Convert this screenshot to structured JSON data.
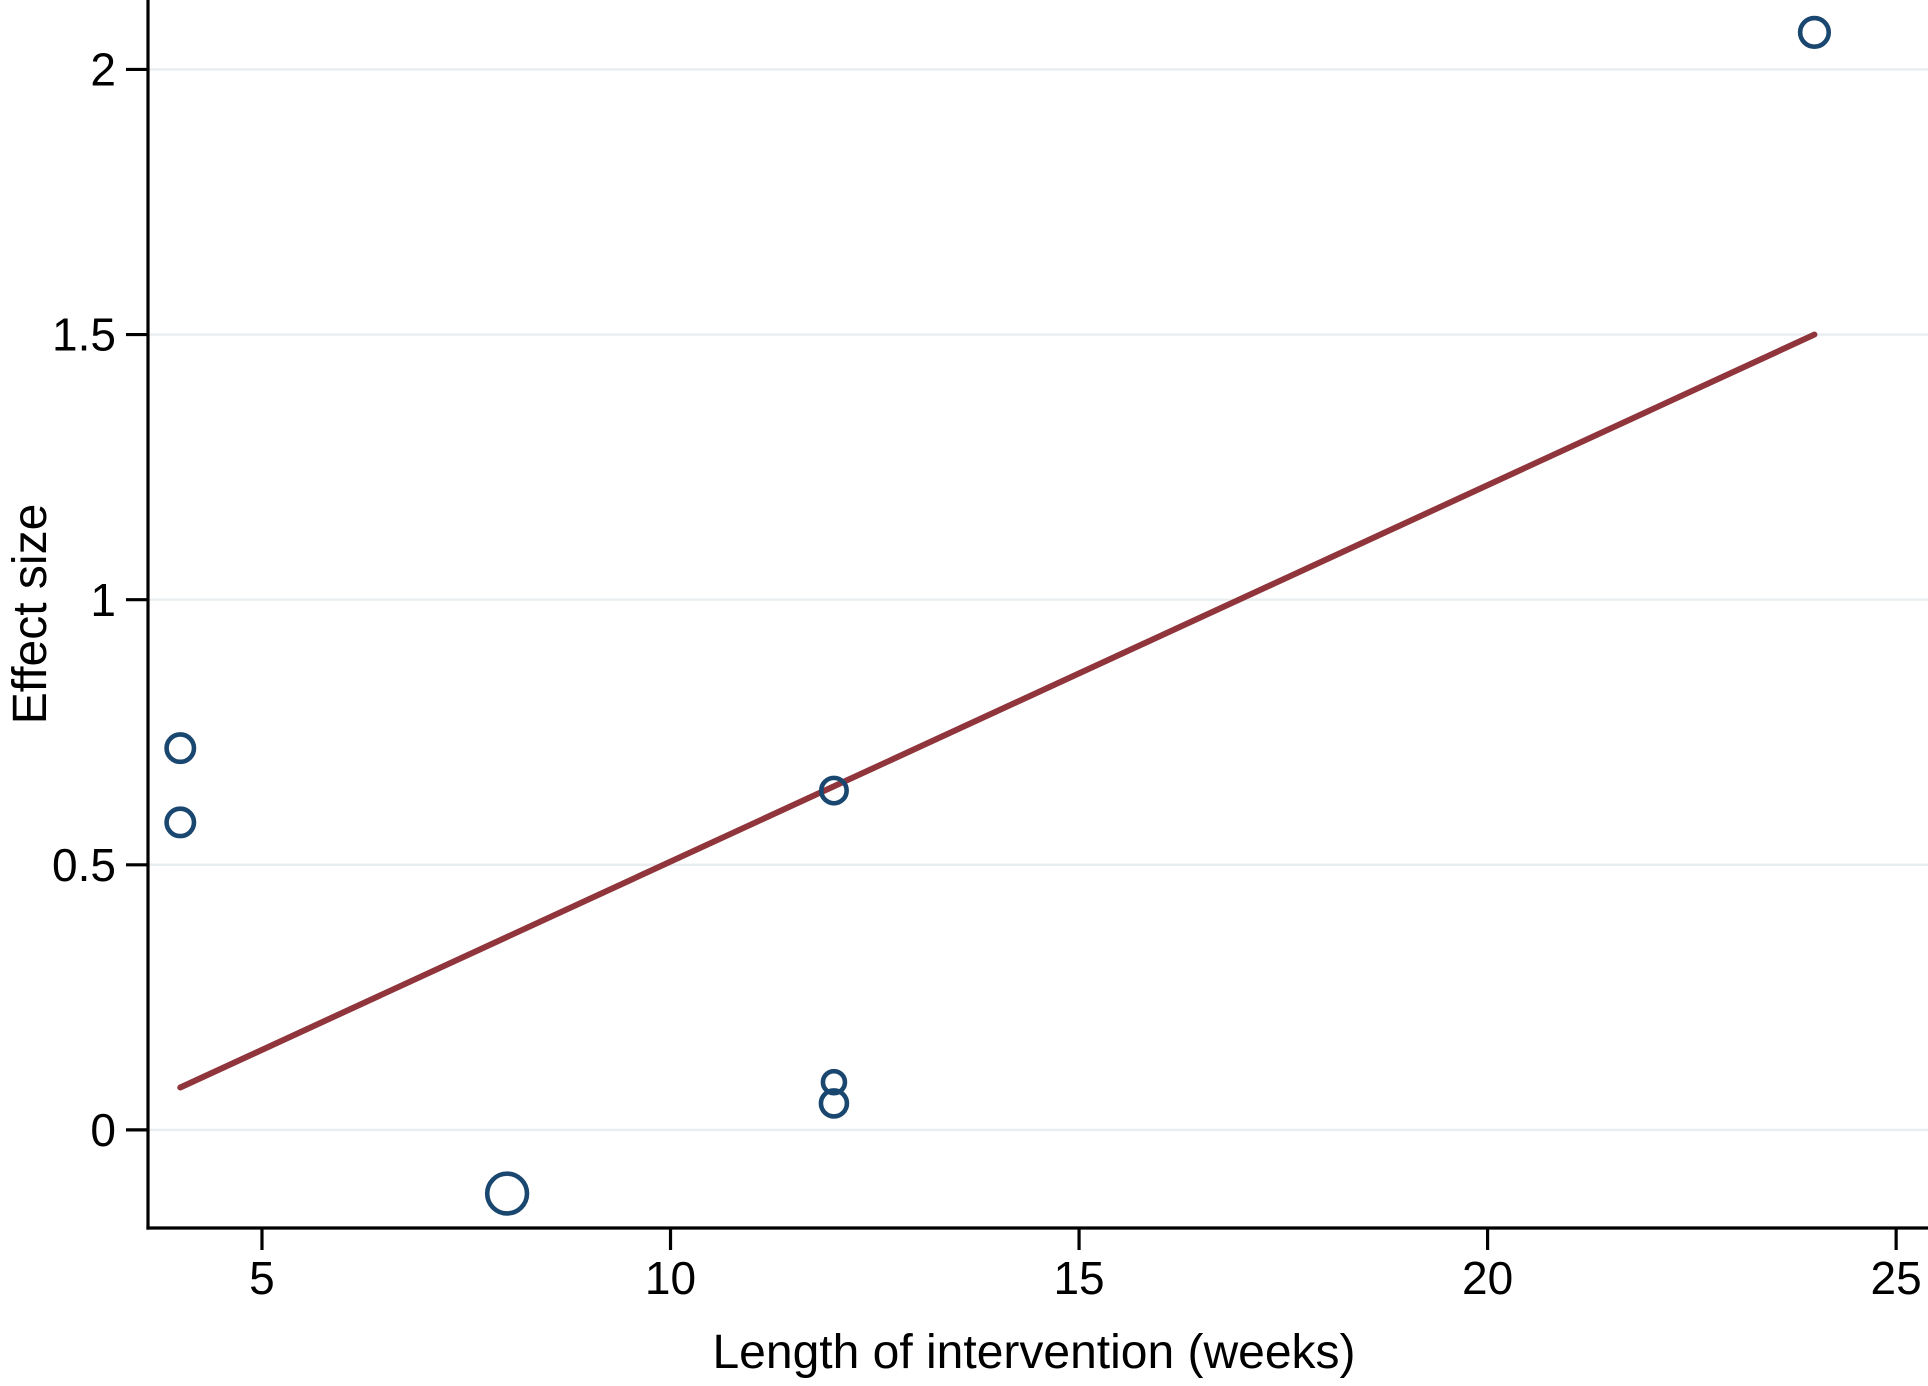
{
  "figure": {
    "background": "#ffffff"
  },
  "chart_data": {
    "type": "scatter",
    "title": "",
    "xlabel": "Length of intervention (weeks)",
    "ylabel": "Effect size",
    "xlim": [
      3.605,
      25.39
    ],
    "ylim": [
      -0.185,
      2.131
    ],
    "grid": "horizontal",
    "legend": "none",
    "x_ticks": [
      {
        "value": 5,
        "label": "5"
      },
      {
        "value": 10,
        "label": "10"
      },
      {
        "value": 15,
        "label": "15"
      },
      {
        "value": 20,
        "label": "20"
      },
      {
        "value": 25,
        "label": "25"
      }
    ],
    "y_ticks": [
      {
        "value": 0,
        "label": "0"
      },
      {
        "value": 0.5,
        "label": "0.5"
      },
      {
        "value": 1,
        "label": "1"
      },
      {
        "value": 1.5,
        "label": "1.5"
      },
      {
        "value": 2,
        "label": "2"
      }
    ],
    "points": [
      {
        "x": 4,
        "y": 0.72,
        "r": 13.7
      },
      {
        "x": 4,
        "y": 0.58,
        "r": 13.7
      },
      {
        "x": 8,
        "y": -0.12,
        "r": 19.9
      },
      {
        "x": 12,
        "y": 0.64,
        "r": 12.7
      },
      {
        "x": 12,
        "y": 0.09,
        "r": 11.0
      },
      {
        "x": 12,
        "y": 0.05,
        "r": 13.0
      },
      {
        "x": 24,
        "y": 2.07,
        "r": 14.3
      }
    ],
    "regression_line": {
      "x1": 4,
      "y1": 0.08,
      "x2": 24,
      "y2": 1.5
    },
    "colors": {
      "marker_stroke": "#1a476f",
      "fit_line": "#90353b",
      "gridline": "#e8eef0",
      "axis": "#000000",
      "background": "#ffffff"
    }
  }
}
